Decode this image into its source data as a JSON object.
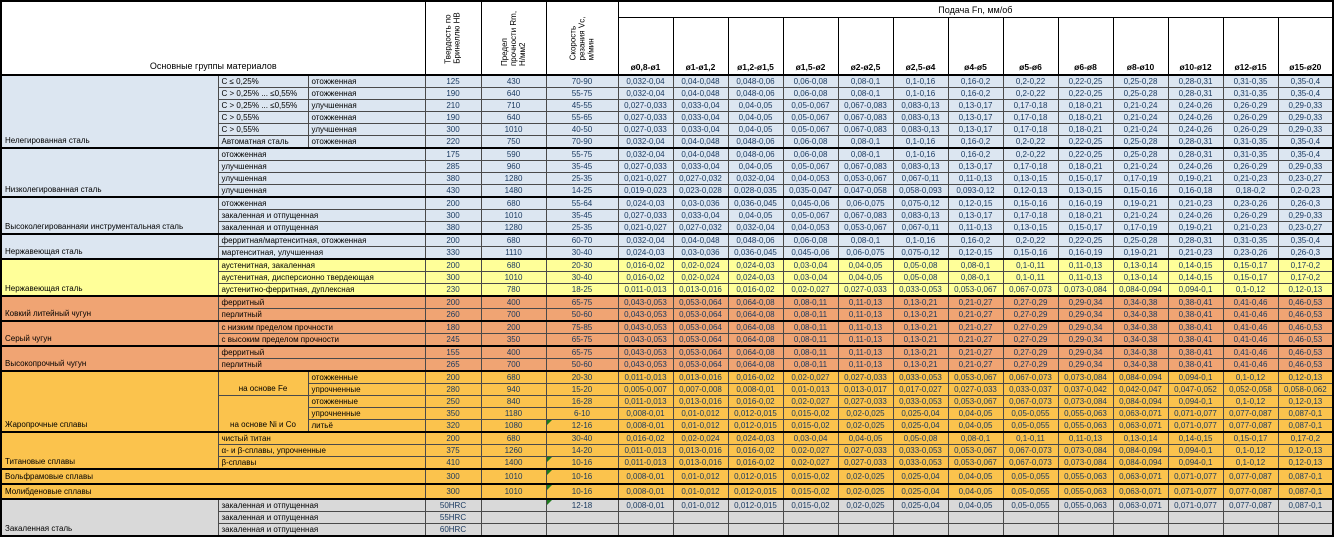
{
  "table": {
    "left_header": "Основные группы материалов",
    "col_hb": "Твердость по\nБринеллю HB",
    "col_rm": "Предел\nпрочности Rm,\nН/мм2",
    "col_vc": "Скорость\nрезания Vc,\nм/мин",
    "feed_header": "Подача Fn, мм/об",
    "diameters": [
      "ø0,8-ø1",
      "ø1-ø1,2",
      "ø1,2-ø1,5",
      "ø1,5-ø2",
      "ø2-ø2,5",
      "ø2,5-ø4",
      "ø4-ø5",
      "ø5-ø6",
      "ø6-ø8",
      "ø8-ø10",
      "ø10-ø12",
      "ø12-ø15",
      "ø15-ø20"
    ],
    "colors": {
      "steel_blue": "#DCE6F1",
      "yellow": "#FFFF99",
      "orange": "#F0A473",
      "amber": "#FBC34D",
      "gray": "#D9D9D9"
    },
    "patterns": {
      "A": [
        "0,032-0,04",
        "0,04-0,048",
        "0,048-0,06",
        "0,06-0,08",
        "0,08-0,1",
        "0,1-0,16",
        "0,16-0,2",
        "0,2-0,22",
        "0,22-0,25",
        "0,25-0,28",
        "0,28-0,31",
        "0,31-0,35",
        "0,35-0,4"
      ],
      "B": [
        "0,027-0,033",
        "0,033-0,04",
        "0,04-0,05",
        "0,05-0,067",
        "0,067-0,083",
        "0,083-0,13",
        "0,13-0,17",
        "0,17-0,18",
        "0,18-0,21",
        "0,21-0,24",
        "0,24-0,26",
        "0,26-0,29",
        "0,29-0,33"
      ],
      "C": [
        "0,021-0,027",
        "0,027-0,032",
        "0,032-0,04",
        "0,04-0,053",
        "0,053-0,067",
        "0,067-0,11",
        "0,11-0,13",
        "0,13-0,15",
        "0,15-0,17",
        "0,17-0,19",
        "0,19-0,21",
        "0,21-0,23",
        "0,23-0,27"
      ],
      "D": [
        "0,019-0,023",
        "0,023-0,028",
        "0,028-0,035",
        "0,035-0,047",
        "0,047-0,058",
        "0,058-0,093",
        "0,093-0,12",
        "0,12-0,13",
        "0,13-0,15",
        "0,15-0,16",
        "0,16-0,18",
        "0,18-0,2",
        "0,2-0,23"
      ],
      "E": [
        "0,024-0,03",
        "0,03-0,036",
        "0,036-0,045",
        "0,045-0,06",
        "0,06-0,075",
        "0,075-0,12",
        "0,12-0,15",
        "0,15-0,16",
        "0,16-0,19",
        "0,19-0,21",
        "0,21-0,23",
        "0,23-0,26",
        "0,26-0,3"
      ],
      "F": [
        "0,016-0,02",
        "0,02-0,024",
        "0,024-0,03",
        "0,03-0,04",
        "0,04-0,05",
        "0,05-0,08",
        "0,08-0,1",
        "0,1-0,11",
        "0,11-0,13",
        "0,13-0,14",
        "0,14-0,15",
        "0,15-0,17",
        "0,17-0,2"
      ],
      "G": [
        "0,011-0,013",
        "0,013-0,016",
        "0,016-0,02",
        "0,02-0,027",
        "0,027-0,033",
        "0,033-0,053",
        "0,053-0,067",
        "0,067-0,073",
        "0,073-0,084",
        "0,084-0,094",
        "0,094-0,1",
        "0,1-0,12",
        "0,12-0,13"
      ],
      "H": [
        "0,043-0,053",
        "0,053-0,064",
        "0,064-0,08",
        "0,08-0,11",
        "0,11-0,13",
        "0,13-0,21",
        "0,21-0,27",
        "0,27-0,29",
        "0,29-0,34",
        "0,34-0,38",
        "0,38-0,41",
        "0,41-0,46",
        "0,46-0,53"
      ],
      "I": [
        "0,005-0,007",
        "0,007-0,008",
        "0,008-0,01",
        "0,01-0,013",
        "0,013-0,017",
        "0,017-0,027",
        "0,027-0,033",
        "0,033-0,037",
        "0,037-0,042",
        "0,042-0,047",
        "0,047-0,052",
        "0,052-0,058",
        "0,058-0,062"
      ],
      "J": [
        "0,008-0,01",
        "0,01-0,012",
        "0,012-0,015",
        "0,015-0,02",
        "0,02-0,025",
        "0,025-0,04",
        "0,04-0,05",
        "0,05-0,055",
        "0,055-0,063",
        "0,063-0,071",
        "0,071-0,077",
        "0,077-0,087",
        "0,087-0,1"
      ],
      "EMPTY": [
        "",
        "",
        "",
        "",
        "",
        "",
        "",
        "",
        "",
        "",
        "",
        "",
        ""
      ]
    },
    "groups": [
      {
        "name": "Нелегированная сталь",
        "color": "#DCE6F1",
        "type": "split",
        "rows": [
          {
            "sub": "C ≤ 0,25%",
            "cond": "отожженная",
            "hb": "125",
            "rm": "430",
            "vc": "70-90",
            "f": "A"
          },
          {
            "sub": "C > 0,25% ... ≤0,55%",
            "cond": "отожженная",
            "hb": "190",
            "rm": "640",
            "vc": "55-75",
            "f": "A"
          },
          {
            "sub": "C > 0,25% ... ≤0,55%",
            "cond": "улучшенная",
            "hb": "210",
            "rm": "710",
            "vc": "45-55",
            "f": "B"
          },
          {
            "sub": "C > 0,55%",
            "cond": "отожженная",
            "hb": "190",
            "rm": "640",
            "vc": "55-65",
            "f": "B"
          },
          {
            "sub": "C > 0,55%",
            "cond": "улучшенная",
            "hb": "300",
            "rm": "1010",
            "vc": "40-50",
            "f": "B"
          },
          {
            "sub": "Автоматная сталь",
            "cond": "отожженная",
            "hb": "220",
            "rm": "750",
            "vc": "70-90",
            "f": "A"
          }
        ]
      },
      {
        "name": "Низколегированная сталь",
        "color": "#DCE6F1",
        "type": "merged",
        "rows": [
          {
            "cond": "отожженная",
            "hb": "175",
            "rm": "590",
            "vc": "55-75",
            "f": "A"
          },
          {
            "cond": "улучшенная",
            "hb": "285",
            "rm": "960",
            "vc": "35-45",
            "f": "B"
          },
          {
            "cond": "улучшенная",
            "hb": "380",
            "rm": "1280",
            "vc": "25-35",
            "f": "C"
          },
          {
            "cond": "улучшенная",
            "hb": "430",
            "rm": "1480",
            "vc": "14-25",
            "f": "D"
          }
        ]
      },
      {
        "name": "Высоколегированнаяи инструментальная сталь",
        "color": "#DCE6F1",
        "type": "merged",
        "rows": [
          {
            "cond": "отожженная",
            "hb": "200",
            "rm": "680",
            "vc": "55-64",
            "f": "E"
          },
          {
            "cond": "закаленная и отпущенная",
            "hb": "300",
            "rm": "1010",
            "vc": "35-45",
            "f": "B"
          },
          {
            "cond": "закаленная и отпущенная",
            "hb": "380",
            "rm": "1280",
            "vc": "25-35",
            "f": "C"
          }
        ]
      },
      {
        "name": "Нержавеющая сталь",
        "color": "#DCE6F1",
        "type": "merged",
        "rows": [
          {
            "cond": "ферритная/мартенситная, отожженная",
            "hb": "200",
            "rm": "680",
            "vc": "60-70",
            "f": "A"
          },
          {
            "cond": "мартенситная, улучшенная",
            "hb": "330",
            "rm": "1110",
            "vc": "30-40",
            "f": "E"
          }
        ]
      },
      {
        "name": "Нержавеющая сталь",
        "color": "#FFFF99",
        "type": "merged",
        "rows": [
          {
            "cond": "аустенитная, закаленная",
            "hb": "200",
            "rm": "680",
            "vc": "20-30",
            "f": "F"
          },
          {
            "cond": "аустенитная, дисперсионно твердеющая",
            "hb": "300",
            "rm": "1010",
            "vc": "30-40",
            "f": "F"
          },
          {
            "cond": "аустенитно-ферритная, дуплексная",
            "hb": "230",
            "rm": "780",
            "vc": "18-25",
            "f": "G"
          }
        ]
      },
      {
        "name": "Ковкий литейный чугун",
        "color": "#F0A473",
        "type": "merged",
        "rows": [
          {
            "cond": "ферритный",
            "hb": "200",
            "rm": "400",
            "vc": "65-75",
            "f": "H"
          },
          {
            "cond": "перлитный",
            "hb": "260",
            "rm": "700",
            "vc": "50-60",
            "f": "H"
          }
        ]
      },
      {
        "name": "Серый чугун",
        "color": "#F0A473",
        "type": "merged",
        "rows": [
          {
            "cond": "с низким пределом прочности",
            "hb": "180",
            "rm": "200",
            "vc": "75-85",
            "f": "H"
          },
          {
            "cond": "с высоким пределом прочности",
            "hb": "245",
            "rm": "350",
            "vc": "65-75",
            "f": "H"
          }
        ]
      },
      {
        "name": "Высокопрочный чугун",
        "color": "#F0A473",
        "type": "merged",
        "rows": [
          {
            "cond": "ферритный",
            "hb": "155",
            "rm": "400",
            "vc": "65-75",
            "f": "H"
          },
          {
            "cond": "перлитный",
            "hb": "265",
            "rm": "700",
            "vc": "50-60",
            "f": "H"
          }
        ]
      },
      {
        "name": "Жаропрочные сплавы",
        "color": "#FBC34D",
        "type": "nested",
        "sub_cells": [
          {
            "label": "на основе Fe",
            "span": 2
          },
          {
            "label": "на основе Ni и Co",
            "span": 3
          }
        ],
        "rows": [
          {
            "cond": "отожженные",
            "hb": "200",
            "rm": "680",
            "vc": "20-30",
            "f": "G"
          },
          {
            "cond": "упрочненные",
            "hb": "280",
            "rm": "940",
            "vc": "15-20",
            "f": "I"
          },
          {
            "cond": "отожженные",
            "hb": "250",
            "rm": "840",
            "vc": "16-28",
            "f": "G"
          },
          {
            "cond": "упрочненные",
            "hb": "350",
            "rm": "1180",
            "vc": "6-10",
            "f": "J"
          },
          {
            "cond": "литьё",
            "hb": "320",
            "rm": "1080",
            "vc": "12-16",
            "f": "J",
            "marker": true
          }
        ]
      },
      {
        "name": "Титановые сплавы",
        "color": "#FBC34D",
        "type": "merged",
        "rows": [
          {
            "cond": "чистый титан",
            "hb": "200",
            "rm": "680",
            "vc": "30-40",
            "f": "F"
          },
          {
            "cond": "α- и β-сплавы, упрочненные",
            "hb": "375",
            "rm": "1260",
            "vc": "14-20",
            "f": "G"
          },
          {
            "cond": "β-сплавы",
            "hb": "410",
            "rm": "1400",
            "vc": "10-16",
            "f": "G",
            "marker": true
          }
        ]
      },
      {
        "name": "Вольфрамовые сплавы",
        "color": "#FBC34D",
        "type": "wide",
        "rows": [
          {
            "hb": "300",
            "rm": "1010",
            "vc": "10-16",
            "f": "J",
            "marker": true
          }
        ]
      },
      {
        "name": "Молибденовые сплавы",
        "color": "#FBC34D",
        "type": "wide",
        "rows": [
          {
            "hb": "300",
            "rm": "1010",
            "vc": "10-16",
            "f": "J",
            "marker": true
          }
        ]
      },
      {
        "name": "Закаленная сталь",
        "color": "#D9D9D9",
        "type": "merged",
        "rows": [
          {
            "cond": "закаленная и отпущенная",
            "hb": "50HRC",
            "rm": "",
            "vc": "12-18",
            "f": "J",
            "marker": true
          },
          {
            "cond": "закаленная и отпущенная",
            "hb": "55HRC",
            "rm": "",
            "vc": "",
            "f": "EMPTY"
          },
          {
            "cond": "закаленная и отпущенная",
            "hb": "60HRC",
            "rm": "",
            "vc": "",
            "f": "EMPTY"
          }
        ]
      }
    ]
  }
}
